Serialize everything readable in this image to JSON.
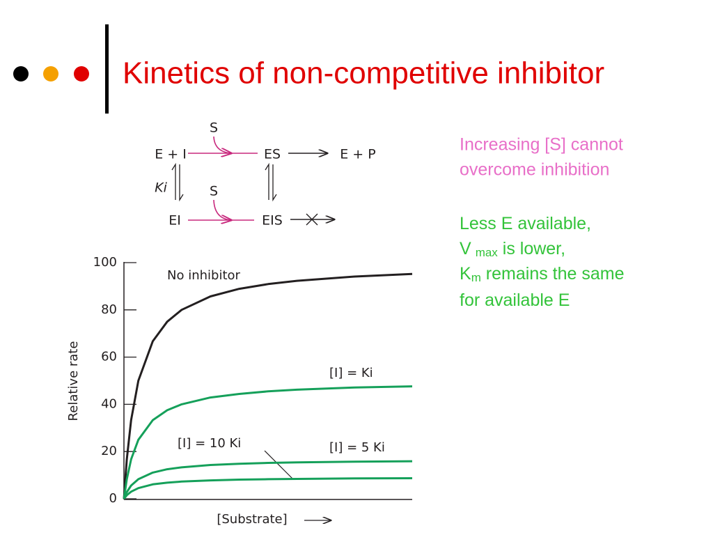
{
  "title": "Kinetics of non-competitive inhibitor",
  "diagram": {
    "labels": [
      "S",
      "E + I",
      "ES",
      "E + P",
      "Ki",
      "S",
      "EI",
      "EIS"
    ]
  },
  "notes": {
    "pink": [
      "Increasing [S] cannot",
      "overcome inhibition"
    ],
    "green": [
      [
        "Less E available,"
      ],
      [
        "V",
        "max",
        " is lower,"
      ],
      [
        "K",
        "m",
        " remains the same"
      ],
      [
        "for available E"
      ]
    ]
  },
  "chart_data": {
    "type": "line",
    "x_label": "[Substrate]",
    "y_label": "Relative rate",
    "x": [
      0,
      0.1,
      0.25,
      0.5,
      1,
      1.5,
      2,
      3,
      4,
      5,
      6,
      8,
      10
    ],
    "xlim": [
      0,
      10
    ],
    "ylim": [
      0,
      100
    ],
    "yticks": [
      0,
      20,
      40,
      60,
      80,
      100
    ],
    "series": [
      {
        "name": "No inhibitor",
        "color": "#231f20",
        "values": [
          0,
          16.7,
          33.3,
          50,
          66.7,
          75,
          80,
          85.7,
          88.9,
          90.9,
          92.3,
          94.1,
          95.2
        ]
      },
      {
        "name": "[I] = Ki",
        "color": "#15a05a",
        "values": [
          0,
          8.3,
          16.7,
          25,
          33.3,
          37.5,
          40,
          42.9,
          44.4,
          45.5,
          46.2,
          47.1,
          47.6
        ]
      },
      {
        "name": "[I] = 5 Ki",
        "color": "#15a05a",
        "values": [
          0,
          2.8,
          5.6,
          8.3,
          11.1,
          12.5,
          13.3,
          14.3,
          14.8,
          15.2,
          15.4,
          15.7,
          15.9
        ]
      },
      {
        "name": "[I] = 10 Ki",
        "color": "#15a05a",
        "values": [
          0,
          1.5,
          3.0,
          4.5,
          6.1,
          6.8,
          7.3,
          7.8,
          8.1,
          8.3,
          8.4,
          8.6,
          8.7
        ]
      }
    ]
  }
}
